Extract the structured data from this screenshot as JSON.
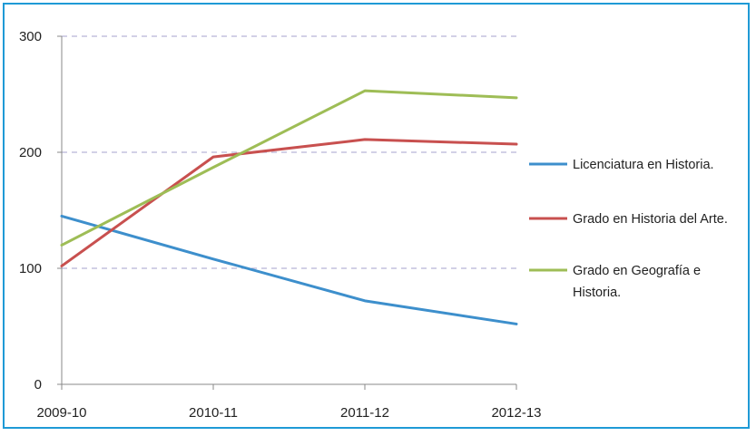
{
  "chart_data": {
    "type": "line",
    "title": "",
    "xlabel": "",
    "ylabel": "",
    "categories": [
      "2009-10",
      "2010-11",
      "2011-12",
      "2012-13"
    ],
    "ylim": [
      0,
      300
    ],
    "yticks": [
      "0",
      "100",
      "200",
      "300"
    ],
    "grid": true,
    "legend_position": "right",
    "series": [
      {
        "name": "Licenciatura en Historia.",
        "color": "#3d8fcc",
        "values": [
          145,
          108,
          72,
          52
        ]
      },
      {
        "name": "Grado en Historia del Arte.",
        "color": "#c8504f",
        "values": [
          102,
          196,
          211,
          207
        ]
      },
      {
        "name": "Grado en Geografía e Historia.",
        "color": "#9ebd56",
        "values": [
          120,
          187,
          253,
          247
        ]
      }
    ]
  }
}
